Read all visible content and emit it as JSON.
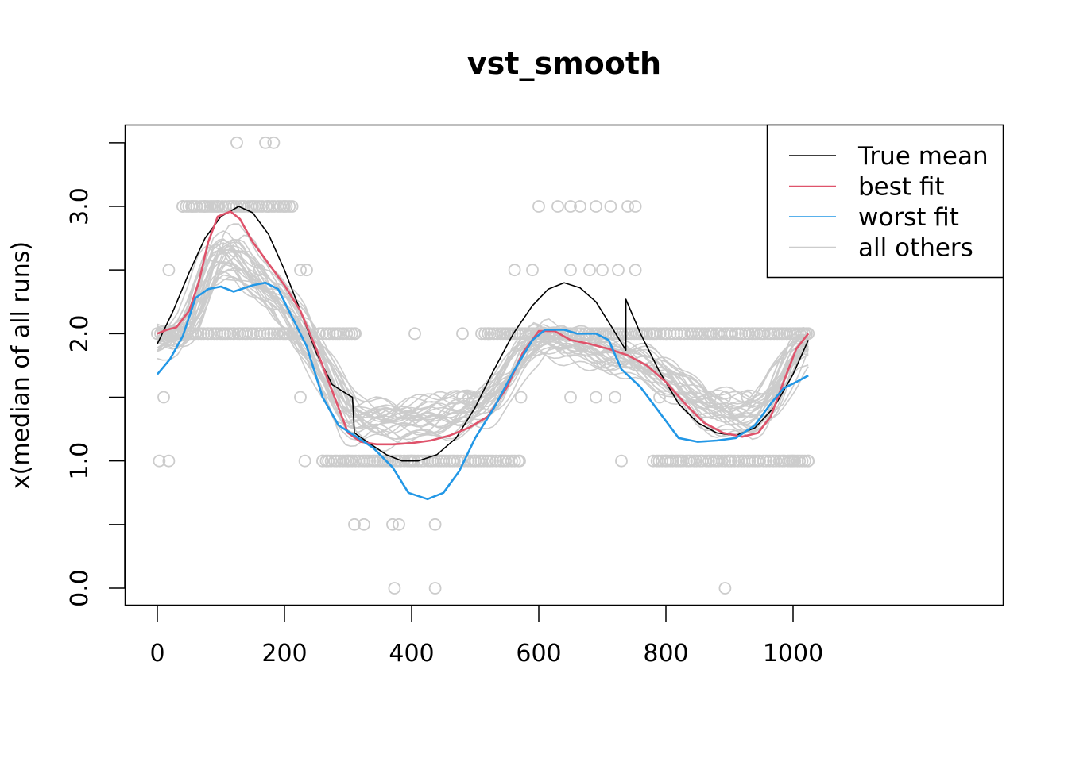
{
  "chart_data": {
    "type": "line",
    "title": "vst_smooth",
    "xlabel": "",
    "ylabel": "x(median of all runs)",
    "xlim": [
      -20,
      1045
    ],
    "ylim": [
      -0.13,
      3.65
    ],
    "x_ticks": [
      0,
      200,
      400,
      600,
      800,
      1000
    ],
    "x_tick_labels": [
      "0",
      "200",
      "400",
      "600",
      "800",
      "1000"
    ],
    "y_ticks": [
      0.0,
      0.5,
      1.0,
      1.5,
      2.0,
      2.5,
      3.0,
      3.5
    ],
    "y_tick_labels": [
      "0.0",
      "",
      "1.0",
      "",
      "2.0",
      "",
      "3.0",
      ""
    ],
    "grid": false,
    "legend": {
      "position": "top-right",
      "entries": [
        {
          "label": "True mean",
          "color": "#000000"
        },
        {
          "label": "best fit",
          "color": "#DF536B"
        },
        {
          "label": "worst fit",
          "color": "#2297E6"
        },
        {
          "label": "all others",
          "color": "#CCCCCC"
        }
      ]
    },
    "series": [
      {
        "name": "True mean",
        "color": "#000000",
        "x": [
          0,
          25,
          50,
          75,
          100,
          128,
          150,
          175,
          200,
          225,
          250,
          275,
          300,
          307,
          310,
          330,
          360,
          385,
          410,
          440,
          470,
          500,
          530,
          560,
          590,
          615,
          640,
          665,
          690,
          715,
          737,
          737,
          760,
          785,
          790,
          820,
          850,
          880,
          910,
          940,
          970,
          1000,
          1024
        ],
        "y": [
          1.92,
          2.18,
          2.48,
          2.75,
          2.92,
          3.0,
          2.95,
          2.78,
          2.5,
          2.18,
          1.85,
          1.6,
          1.52,
          1.5,
          1.22,
          1.15,
          1.05,
          1.0,
          1.0,
          1.05,
          1.18,
          1.42,
          1.72,
          2.0,
          2.22,
          2.35,
          2.4,
          2.36,
          2.25,
          2.05,
          1.87,
          2.27,
          2.0,
          1.75,
          1.7,
          1.45,
          1.3,
          1.22,
          1.2,
          1.26,
          1.42,
          1.68,
          1.95
        ]
      },
      {
        "name": "best fit",
        "color": "#DF536B",
        "x": [
          0,
          15,
          30,
          50,
          65,
          80,
          95,
          115,
          130,
          150,
          175,
          200,
          225,
          250,
          275,
          300,
          320,
          345,
          370,
          400,
          430,
          460,
          490,
          520,
          550,
          575,
          600,
          625,
          650,
          680,
          710,
          740,
          770,
          800,
          830,
          860,
          890,
          920,
          945,
          965,
          985,
          1005,
          1024
        ],
        "y": [
          2.0,
          2.03,
          2.05,
          2.18,
          2.4,
          2.72,
          2.92,
          2.96,
          2.9,
          2.72,
          2.55,
          2.38,
          2.18,
          1.88,
          1.55,
          1.22,
          1.15,
          1.13,
          1.13,
          1.14,
          1.16,
          1.2,
          1.26,
          1.35,
          1.58,
          1.85,
          2.02,
          2.02,
          1.95,
          1.92,
          1.88,
          1.83,
          1.75,
          1.62,
          1.45,
          1.3,
          1.22,
          1.19,
          1.22,
          1.35,
          1.62,
          1.88,
          2.0
        ]
      },
      {
        "name": "worst fit",
        "color": "#2297E6",
        "x": [
          0,
          20,
          40,
          60,
          80,
          100,
          120,
          150,
          170,
          190,
          210,
          235,
          260,
          285,
          310,
          340,
          370,
          395,
          425,
          450,
          475,
          500,
          530,
          560,
          590,
          610,
          640,
          660,
          690,
          710,
          730,
          760,
          790,
          820,
          850,
          880,
          910,
          940,
          965,
          985,
          1005,
          1024
        ],
        "y": [
          1.68,
          1.8,
          1.98,
          2.28,
          2.35,
          2.37,
          2.33,
          2.38,
          2.4,
          2.35,
          2.15,
          1.9,
          1.5,
          1.28,
          1.2,
          1.1,
          0.95,
          0.75,
          0.7,
          0.75,
          0.92,
          1.18,
          1.42,
          1.7,
          1.95,
          2.03,
          2.03,
          2.0,
          2.0,
          1.95,
          1.72,
          1.58,
          1.38,
          1.18,
          1.15,
          1.16,
          1.18,
          1.28,
          1.45,
          1.57,
          1.62,
          1.67
        ]
      }
    ],
    "other_runs_count": 30,
    "scatter_levels": [
      0.0,
      0.5,
      1.0,
      1.5,
      2.0,
      2.5,
      3.0,
      3.5
    ],
    "scatter_points": [
      {
        "x": 125,
        "y": 3.5
      },
      {
        "x": 170,
        "y": 3.5
      },
      {
        "x": 183,
        "y": 3.5
      },
      {
        "x": 40,
        "y": 3.0
      },
      {
        "x": 55,
        "y": 3.0
      },
      {
        "x": 75,
        "y": 3.0
      },
      {
        "x": 95,
        "y": 3.0
      },
      {
        "x": 120,
        "y": 3.0
      },
      {
        "x": 150,
        "y": 3.0
      },
      {
        "x": 175,
        "y": 3.0
      },
      {
        "x": 200,
        "y": 3.0
      },
      {
        "x": 212,
        "y": 3.0
      },
      {
        "x": 600,
        "y": 3.0
      },
      {
        "x": 630,
        "y": 3.0
      },
      {
        "x": 650,
        "y": 3.0
      },
      {
        "x": 665,
        "y": 3.0
      },
      {
        "x": 690,
        "y": 3.0
      },
      {
        "x": 713,
        "y": 3.0
      },
      {
        "x": 740,
        "y": 3.0
      },
      {
        "x": 752,
        "y": 3.0
      },
      {
        "x": 18,
        "y": 2.5
      },
      {
        "x": 160,
        "y": 2.5
      },
      {
        "x": 225,
        "y": 2.5
      },
      {
        "x": 235,
        "y": 2.5
      },
      {
        "x": 562,
        "y": 2.5
      },
      {
        "x": 590,
        "y": 2.5
      },
      {
        "x": 650,
        "y": 2.5
      },
      {
        "x": 680,
        "y": 2.5
      },
      {
        "x": 700,
        "y": 2.5
      },
      {
        "x": 725,
        "y": 2.5
      },
      {
        "x": 752,
        "y": 2.5
      },
      {
        "x": 0,
        "y": 2.0
      },
      {
        "x": 30,
        "y": 2.0
      },
      {
        "x": 80,
        "y": 2.0
      },
      {
        "x": 120,
        "y": 2.0
      },
      {
        "x": 200,
        "y": 2.0
      },
      {
        "x": 260,
        "y": 2.0
      },
      {
        "x": 310,
        "y": 2.0
      },
      {
        "x": 405,
        "y": 2.0
      },
      {
        "x": 480,
        "y": 2.0
      },
      {
        "x": 520,
        "y": 2.0
      },
      {
        "x": 600,
        "y": 2.0
      },
      {
        "x": 700,
        "y": 2.0
      },
      {
        "x": 800,
        "y": 2.0
      },
      {
        "x": 870,
        "y": 2.0
      },
      {
        "x": 930,
        "y": 2.0
      },
      {
        "x": 990,
        "y": 2.0
      },
      {
        "x": 1024,
        "y": 2.0
      },
      {
        "x": 10,
        "y": 1.5
      },
      {
        "x": 225,
        "y": 1.5
      },
      {
        "x": 480,
        "y": 1.5
      },
      {
        "x": 490,
        "y": 1.5
      },
      {
        "x": 572,
        "y": 1.5
      },
      {
        "x": 650,
        "y": 1.5
      },
      {
        "x": 690,
        "y": 1.5
      },
      {
        "x": 720,
        "y": 1.5
      },
      {
        "x": 790,
        "y": 1.5
      },
      {
        "x": 840,
        "y": 1.5
      },
      {
        "x": 870,
        "y": 1.5
      },
      {
        "x": 893,
        "y": 1.5
      },
      {
        "x": 928,
        "y": 1.5
      },
      {
        "x": 3,
        "y": 1.0
      },
      {
        "x": 18,
        "y": 1.0
      },
      {
        "x": 232,
        "y": 1.0
      },
      {
        "x": 260,
        "y": 1.0
      },
      {
        "x": 300,
        "y": 1.0
      },
      {
        "x": 400,
        "y": 1.0
      },
      {
        "x": 500,
        "y": 1.0
      },
      {
        "x": 570,
        "y": 1.0
      },
      {
        "x": 730,
        "y": 1.0
      },
      {
        "x": 800,
        "y": 1.0
      },
      {
        "x": 900,
        "y": 1.0
      },
      {
        "x": 1000,
        "y": 1.0
      },
      {
        "x": 1024,
        "y": 1.0
      },
      {
        "x": 310,
        "y": 0.5
      },
      {
        "x": 325,
        "y": 0.5
      },
      {
        "x": 370,
        "y": 0.5
      },
      {
        "x": 380,
        "y": 0.5
      },
      {
        "x": 437,
        "y": 0.5
      },
      {
        "x": 373,
        "y": 0.0
      },
      {
        "x": 437,
        "y": 0.0
      },
      {
        "x": 893,
        "y": 0.0
      }
    ],
    "scatter_dense_bands": [
      {
        "y": 3.0,
        "x_range": [
          40,
          212
        ]
      },
      {
        "y": 2.0,
        "x_range": [
          0,
          240
        ]
      },
      {
        "y": 2.0,
        "x_range": [
          255,
          312
        ]
      },
      {
        "y": 2.0,
        "x_range": [
          510,
          1024
        ]
      },
      {
        "y": 1.0,
        "x_range": [
          260,
          570
        ]
      },
      {
        "y": 1.0,
        "x_range": [
          780,
          1024
        ]
      }
    ]
  }
}
